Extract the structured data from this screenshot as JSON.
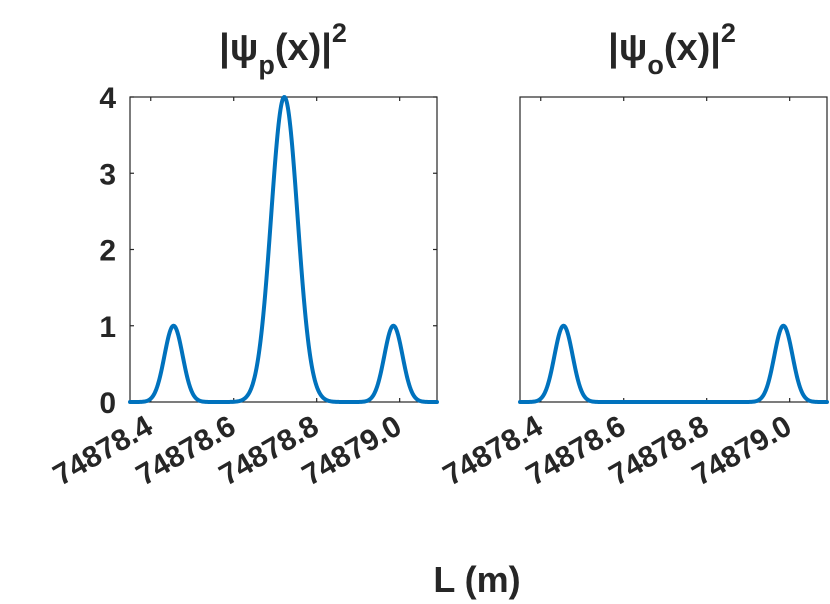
{
  "chart_data": [
    {
      "type": "line",
      "title": {
        "base": "|ψ",
        "sub": "p",
        "mid": "(x)|",
        "sup": "2"
      },
      "x_ticks": [
        "74878.4",
        "74878.6",
        "74878.8",
        "74879.0"
      ],
      "y_ticks": [
        "0",
        "1",
        "2",
        "3",
        "4"
      ],
      "xlim": [
        74878.35,
        74879.09
      ],
      "ylim": [
        0,
        4
      ],
      "series": [
        {
          "peaks": [
            {
              "center": 74878.455,
              "height": 1,
              "sigma": 0.022
            },
            {
              "center": 74878.722,
              "height": 4,
              "sigma": 0.032
            },
            {
              "center": 74878.985,
              "height": 1,
              "sigma": 0.022
            }
          ]
        }
      ]
    },
    {
      "type": "line",
      "title": {
        "base": "|ψ",
        "sub": "o",
        "mid": "(x)|",
        "sup": "2"
      },
      "x_ticks": [
        "74878.4",
        "74878.6",
        "74878.8",
        "74879.0"
      ],
      "y_ticks": [],
      "xlim": [
        74878.35,
        74879.09
      ],
      "ylim": [
        0,
        4
      ],
      "series": [
        {
          "peaks": [
            {
              "center": 74878.455,
              "height": 1,
              "sigma": 0.022
            },
            {
              "center": 74878.985,
              "height": 1,
              "sigma": 0.022
            }
          ]
        }
      ]
    }
  ],
  "xlabel": "L (m)",
  "colors": {
    "line": "#0072BD",
    "axis": "#262626"
  }
}
